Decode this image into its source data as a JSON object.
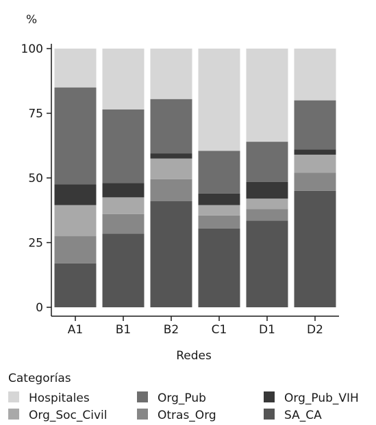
{
  "chart_data": {
    "type": "bar",
    "stacked": true,
    "ylabel": "%",
    "xlabel": "Redes",
    "ylim": [
      0,
      100
    ],
    "yticks": [
      0,
      25,
      50,
      75,
      100
    ],
    "categories": [
      "A1",
      "B1",
      "B2",
      "C1",
      "D1",
      "D2"
    ],
    "series": [
      {
        "name": "SA_CA",
        "color": "#555555",
        "values": [
          17,
          28.5,
          41,
          30.5,
          33.5,
          45
        ]
      },
      {
        "name": "Otras_Org",
        "color": "#878787",
        "values": [
          10.5,
          7.5,
          8.5,
          5,
          4.5,
          7
        ]
      },
      {
        "name": "Org_Soc_Civil",
        "color": "#a9a9a9",
        "values": [
          12,
          6.5,
          8,
          4,
          4,
          7
        ]
      },
      {
        "name": "Org_Pub_VIH",
        "color": "#383838",
        "values": [
          8,
          5.5,
          2,
          4.5,
          6.5,
          2
        ]
      },
      {
        "name": "Org_Pub",
        "color": "#6e6e6e",
        "values": [
          37.5,
          28.5,
          21,
          16.5,
          15.5,
          19
        ]
      },
      {
        "name": "Hospitales",
        "color": "#d6d6d6",
        "values": [
          15,
          23.5,
          19.5,
          39.5,
          36,
          20
        ]
      }
    ],
    "legend": {
      "title": "Categorías",
      "placement": "bottom",
      "items": [
        {
          "label": "Hospitales",
          "series": "Hospitales"
        },
        {
          "label": "Org_Pub",
          "series": "Org_Pub"
        },
        {
          "label": "Org_Pub_VIH",
          "series": "Org_Pub_VIH"
        },
        {
          "label": "Org_Soc_Civil",
          "series": "Org_Soc_Civil"
        },
        {
          "label": "Otras_Org",
          "series": "Otras_Org"
        },
        {
          "label": "SA_CA",
          "series": "SA_CA"
        }
      ]
    },
    "grid": false
  }
}
